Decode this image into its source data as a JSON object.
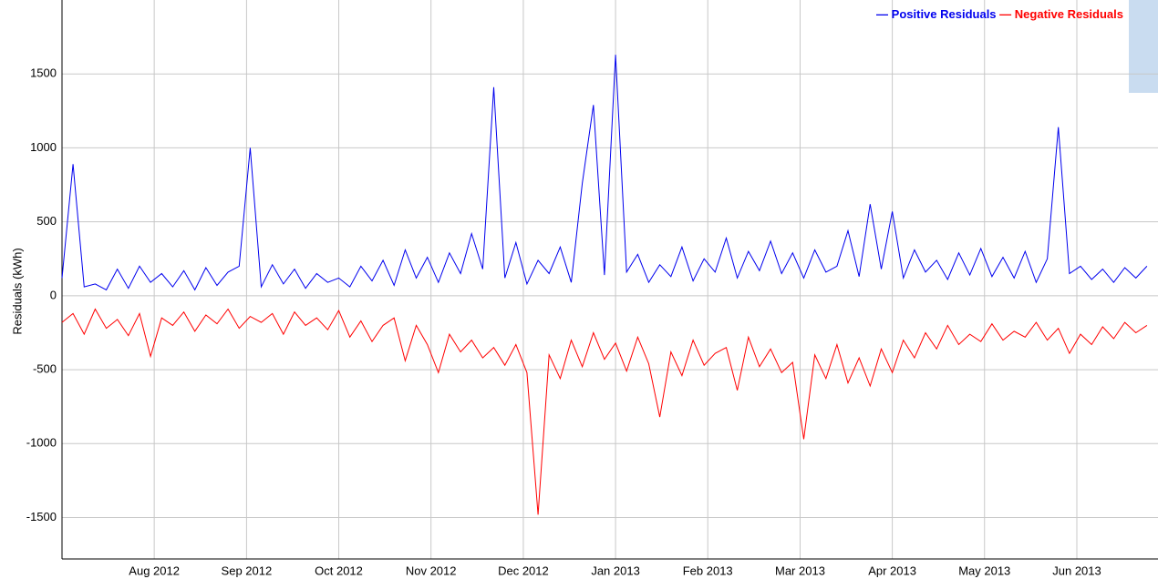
{
  "chart_data": {
    "type": "line",
    "y_label": "Residuals (kWh)",
    "x": [
      2012.5,
      2012.51,
      2012.52,
      2012.53,
      2012.54,
      2012.55,
      2012.56,
      2012.57,
      2012.58,
      2012.59,
      2012.6,
      2012.61,
      2012.62,
      2012.63,
      2012.64,
      2012.65,
      2012.66,
      2012.67,
      2012.68,
      2012.69,
      2012.7,
      2012.71,
      2012.72,
      2012.73,
      2012.74,
      2012.75,
      2012.76,
      2012.77,
      2012.78,
      2012.79,
      2012.8,
      2012.81,
      2012.82,
      2012.83,
      2012.84,
      2012.85,
      2012.86,
      2012.87,
      2012.88,
      2012.89,
      2012.9,
      2012.91,
      2012.92,
      2012.93,
      2012.94,
      2012.95,
      2012.96,
      2012.97,
      2012.98,
      2012.99,
      2013.0,
      2013.01,
      2013.02,
      2013.03,
      2013.04,
      2013.05,
      2013.06,
      2013.07,
      2013.08,
      2013.09,
      2013.1,
      2013.11,
      2013.12,
      2013.13,
      2013.14,
      2013.15,
      2013.16,
      2013.17,
      2013.18,
      2013.19,
      2013.2,
      2013.21,
      2013.22,
      2013.23,
      2013.24,
      2013.25,
      2013.26,
      2013.27,
      2013.28,
      2013.29,
      2013.3,
      2013.31,
      2013.32,
      2013.33,
      2013.34,
      2013.35,
      2013.36,
      2013.37,
      2013.38,
      2013.39,
      2013.4,
      2013.41,
      2013.42,
      2013.43,
      2013.44,
      2013.45,
      2013.46,
      2013.47,
      2013.48
    ],
    "series": [
      {
        "name": "Positive Residuals",
        "color": "#0000ee",
        "values": [
          120,
          890,
          60,
          80,
          40,
          180,
          50,
          200,
          90,
          150,
          60,
          170,
          40,
          190,
          70,
          160,
          200,
          1000,
          60,
          210,
          80,
          180,
          50,
          150,
          90,
          120,
          60,
          200,
          100,
          240,
          70,
          310,
          120,
          260,
          90,
          290,
          150,
          420,
          180,
          1410,
          120,
          360,
          80,
          240,
          150,
          330,
          90,
          760,
          1290,
          140,
          1630,
          160,
          280,
          90,
          210,
          130,
          330,
          100,
          250,
          160,
          390,
          120,
          300,
          170,
          370,
          150,
          290,
          120,
          310,
          160,
          200,
          440,
          130,
          620,
          180,
          570,
          120,
          310,
          160,
          240,
          110,
          290,
          140,
          320,
          130,
          260,
          120,
          300,
          90,
          250,
          1140,
          150,
          200,
          110,
          180,
          90,
          190,
          120,
          200
        ]
      },
      {
        "name": "Negative Residuals",
        "color": "#ff0000",
        "values": [
          -180,
          -120,
          -260,
          -90,
          -220,
          -160,
          -270,
          -120,
          -410,
          -150,
          -200,
          -110,
          -240,
          -130,
          -190,
          -90,
          -220,
          -140,
          -180,
          -120,
          -260,
          -110,
          -200,
          -150,
          -230,
          -100,
          -280,
          -170,
          -310,
          -200,
          -150,
          -440,
          -200,
          -330,
          -520,
          -260,
          -380,
          -300,
          -420,
          -350,
          -470,
          -330,
          -520,
          -1480,
          -400,
          -560,
          -300,
          -480,
          -250,
          -430,
          -320,
          -510,
          -280,
          -460,
          -820,
          -380,
          -540,
          -300,
          -470,
          -390,
          -350,
          -640,
          -280,
          -480,
          -360,
          -520,
          -450,
          -970,
          -400,
          -560,
          -330,
          -590,
          -420,
          -610,
          -360,
          -520,
          -300,
          -420,
          -250,
          -360,
          -200,
          -330,
          -260,
          -310,
          -190,
          -300,
          -240,
          -280,
          -180,
          -300,
          -220,
          -390,
          -260,
          -330,
          -210,
          -290,
          -180,
          -250,
          -200
        ]
      }
    ],
    "xlim": [
      2012.5,
      2013.49
    ],
    "xticks": [
      {
        "value": 2012.5833,
        "label": "Aug 2012"
      },
      {
        "value": 2012.6667,
        "label": "Sep 2012"
      },
      {
        "value": 2012.75,
        "label": "Oct 2012"
      },
      {
        "value": 2012.8333,
        "label": "Nov 2012"
      },
      {
        "value": 2012.9167,
        "label": "Dec 2012"
      },
      {
        "value": 2013.0,
        "label": "Jan 2013"
      },
      {
        "value": 2013.0833,
        "label": "Feb 2013"
      },
      {
        "value": 2013.1667,
        "label": "Mar 2013"
      },
      {
        "value": 2013.25,
        "label": "Apr 2013"
      },
      {
        "value": 2013.3333,
        "label": "May 2013"
      },
      {
        "value": 2013.4167,
        "label": "Jun 2013"
      }
    ],
    "ylim": [
      -1780,
      2000
    ],
    "yticks": [
      -1500,
      -1000,
      -500,
      0,
      500,
      1000,
      1500
    ],
    "grid": true,
    "legend": "top-right"
  }
}
